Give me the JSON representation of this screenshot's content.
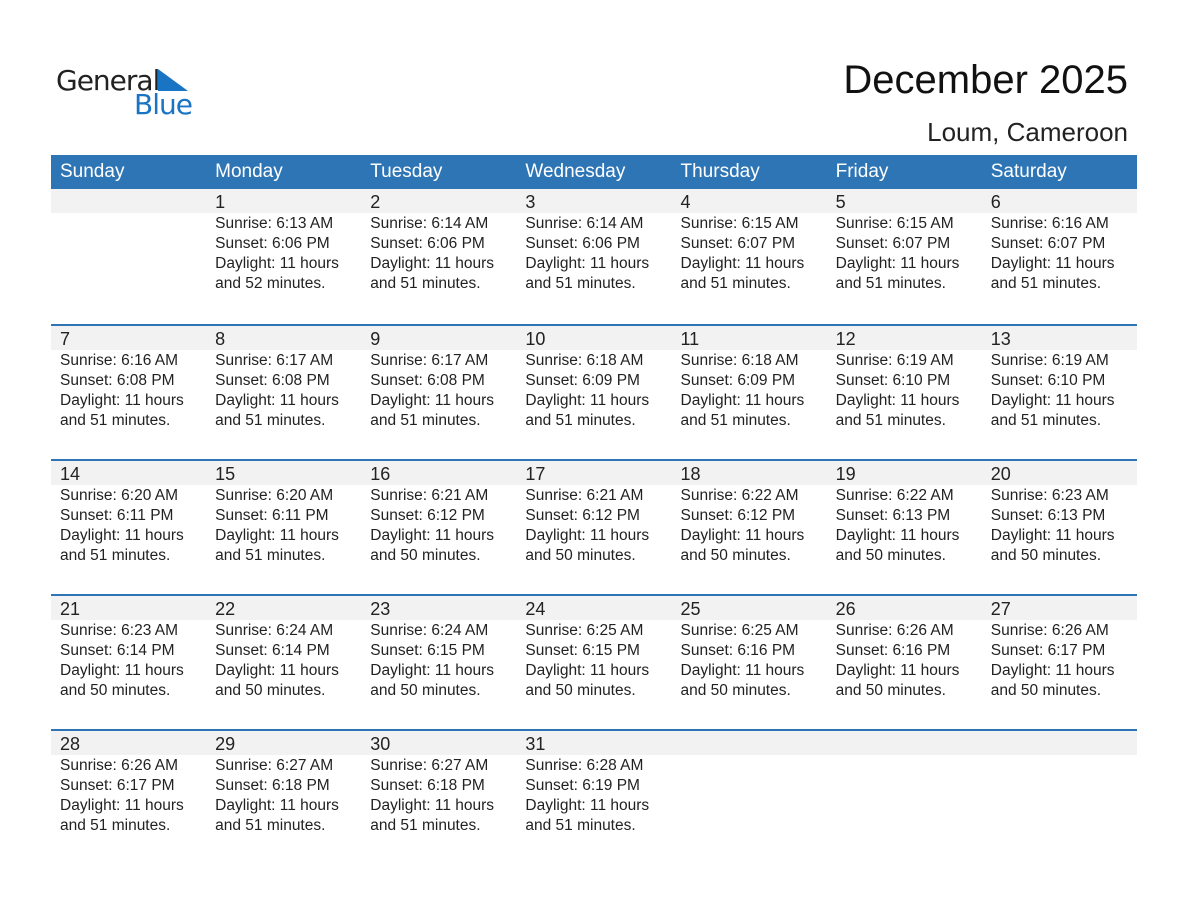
{
  "logo": {
    "general": "General",
    "blue": "Blue"
  },
  "header": {
    "title": "December 2025",
    "location": "Loum, Cameroon"
  },
  "weekdays": [
    "Sunday",
    "Monday",
    "Tuesday",
    "Wednesday",
    "Thursday",
    "Friday",
    "Saturday"
  ],
  "colors": {
    "accent": "#2e75b6",
    "band": "#f2f2f2"
  },
  "weeks": [
    [
      null,
      {
        "day": "1",
        "sunrise": "Sunrise: 6:13 AM",
        "sunset": "Sunset: 6:06 PM",
        "daylight": "Daylight: 11 hours",
        "minutes": "and 52 minutes."
      },
      {
        "day": "2",
        "sunrise": "Sunrise: 6:14 AM",
        "sunset": "Sunset: 6:06 PM",
        "daylight": "Daylight: 11 hours",
        "minutes": "and 51 minutes."
      },
      {
        "day": "3",
        "sunrise": "Sunrise: 6:14 AM",
        "sunset": "Sunset: 6:06 PM",
        "daylight": "Daylight: 11 hours",
        "minutes": "and 51 minutes."
      },
      {
        "day": "4",
        "sunrise": "Sunrise: 6:15 AM",
        "sunset": "Sunset: 6:07 PM",
        "daylight": "Daylight: 11 hours",
        "minutes": "and 51 minutes."
      },
      {
        "day": "5",
        "sunrise": "Sunrise: 6:15 AM",
        "sunset": "Sunset: 6:07 PM",
        "daylight": "Daylight: 11 hours",
        "minutes": "and 51 minutes."
      },
      {
        "day": "6",
        "sunrise": "Sunrise: 6:16 AM",
        "sunset": "Sunset: 6:07 PM",
        "daylight": "Daylight: 11 hours",
        "minutes": "and 51 minutes."
      }
    ],
    [
      {
        "day": "7",
        "sunrise": "Sunrise: 6:16 AM",
        "sunset": "Sunset: 6:08 PM",
        "daylight": "Daylight: 11 hours",
        "minutes": "and 51 minutes."
      },
      {
        "day": "8",
        "sunrise": "Sunrise: 6:17 AM",
        "sunset": "Sunset: 6:08 PM",
        "daylight": "Daylight: 11 hours",
        "minutes": "and 51 minutes."
      },
      {
        "day": "9",
        "sunrise": "Sunrise: 6:17 AM",
        "sunset": "Sunset: 6:08 PM",
        "daylight": "Daylight: 11 hours",
        "minutes": "and 51 minutes."
      },
      {
        "day": "10",
        "sunrise": "Sunrise: 6:18 AM",
        "sunset": "Sunset: 6:09 PM",
        "daylight": "Daylight: 11 hours",
        "minutes": "and 51 minutes."
      },
      {
        "day": "11",
        "sunrise": "Sunrise: 6:18 AM",
        "sunset": "Sunset: 6:09 PM",
        "daylight": "Daylight: 11 hours",
        "minutes": "and 51 minutes."
      },
      {
        "day": "12",
        "sunrise": "Sunrise: 6:19 AM",
        "sunset": "Sunset: 6:10 PM",
        "daylight": "Daylight: 11 hours",
        "minutes": "and 51 minutes."
      },
      {
        "day": "13",
        "sunrise": "Sunrise: 6:19 AM",
        "sunset": "Sunset: 6:10 PM",
        "daylight": "Daylight: 11 hours",
        "minutes": "and 51 minutes."
      }
    ],
    [
      {
        "day": "14",
        "sunrise": "Sunrise: 6:20 AM",
        "sunset": "Sunset: 6:11 PM",
        "daylight": "Daylight: 11 hours",
        "minutes": "and 51 minutes."
      },
      {
        "day": "15",
        "sunrise": "Sunrise: 6:20 AM",
        "sunset": "Sunset: 6:11 PM",
        "daylight": "Daylight: 11 hours",
        "minutes": "and 51 minutes."
      },
      {
        "day": "16",
        "sunrise": "Sunrise: 6:21 AM",
        "sunset": "Sunset: 6:12 PM",
        "daylight": "Daylight: 11 hours",
        "minutes": "and 50 minutes."
      },
      {
        "day": "17",
        "sunrise": "Sunrise: 6:21 AM",
        "sunset": "Sunset: 6:12 PM",
        "daylight": "Daylight: 11 hours",
        "minutes": "and 50 minutes."
      },
      {
        "day": "18",
        "sunrise": "Sunrise: 6:22 AM",
        "sunset": "Sunset: 6:12 PM",
        "daylight": "Daylight: 11 hours",
        "minutes": "and 50 minutes."
      },
      {
        "day": "19",
        "sunrise": "Sunrise: 6:22 AM",
        "sunset": "Sunset: 6:13 PM",
        "daylight": "Daylight: 11 hours",
        "minutes": "and 50 minutes."
      },
      {
        "day": "20",
        "sunrise": "Sunrise: 6:23 AM",
        "sunset": "Sunset: 6:13 PM",
        "daylight": "Daylight: 11 hours",
        "minutes": "and 50 minutes."
      }
    ],
    [
      {
        "day": "21",
        "sunrise": "Sunrise: 6:23 AM",
        "sunset": "Sunset: 6:14 PM",
        "daylight": "Daylight: 11 hours",
        "minutes": "and 50 minutes."
      },
      {
        "day": "22",
        "sunrise": "Sunrise: 6:24 AM",
        "sunset": "Sunset: 6:14 PM",
        "daylight": "Daylight: 11 hours",
        "minutes": "and 50 minutes."
      },
      {
        "day": "23",
        "sunrise": "Sunrise: 6:24 AM",
        "sunset": "Sunset: 6:15 PM",
        "daylight": "Daylight: 11 hours",
        "minutes": "and 50 minutes."
      },
      {
        "day": "24",
        "sunrise": "Sunrise: 6:25 AM",
        "sunset": "Sunset: 6:15 PM",
        "daylight": "Daylight: 11 hours",
        "minutes": "and 50 minutes."
      },
      {
        "day": "25",
        "sunrise": "Sunrise: 6:25 AM",
        "sunset": "Sunset: 6:16 PM",
        "daylight": "Daylight: 11 hours",
        "minutes": "and 50 minutes."
      },
      {
        "day": "26",
        "sunrise": "Sunrise: 6:26 AM",
        "sunset": "Sunset: 6:16 PM",
        "daylight": "Daylight: 11 hours",
        "minutes": "and 50 minutes."
      },
      {
        "day": "27",
        "sunrise": "Sunrise: 6:26 AM",
        "sunset": "Sunset: 6:17 PM",
        "daylight": "Daylight: 11 hours",
        "minutes": "and 50 minutes."
      }
    ],
    [
      {
        "day": "28",
        "sunrise": "Sunrise: 6:26 AM",
        "sunset": "Sunset: 6:17 PM",
        "daylight": "Daylight: 11 hours",
        "minutes": "and 51 minutes."
      },
      {
        "day": "29",
        "sunrise": "Sunrise: 6:27 AM",
        "sunset": "Sunset: 6:18 PM",
        "daylight": "Daylight: 11 hours",
        "minutes": "and 51 minutes."
      },
      {
        "day": "30",
        "sunrise": "Sunrise: 6:27 AM",
        "sunset": "Sunset: 6:18 PM",
        "daylight": "Daylight: 11 hours",
        "minutes": "and 51 minutes."
      },
      {
        "day": "31",
        "sunrise": "Sunrise: 6:28 AM",
        "sunset": "Sunset: 6:19 PM",
        "daylight": "Daylight: 11 hours",
        "minutes": "and 51 minutes."
      },
      null,
      null,
      null
    ]
  ]
}
